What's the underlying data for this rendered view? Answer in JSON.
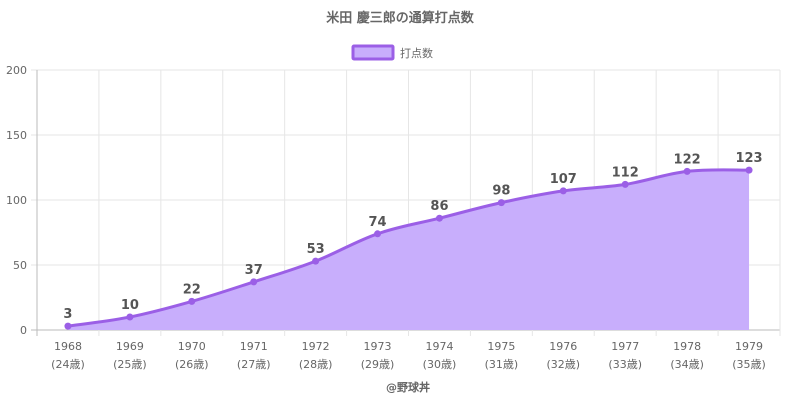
{
  "chart_data": {
    "type": "area",
    "title": "米田 慶三郎の通算打点数",
    "legend": {
      "label": "打点数",
      "position": "top"
    },
    "credit": "@野球丼",
    "categories": [
      "1968",
      "1969",
      "1970",
      "1971",
      "1972",
      "1973",
      "1974",
      "1975",
      "1976",
      "1977",
      "1978",
      "1979"
    ],
    "ages": [
      "(24歳)",
      "(25歳)",
      "(26歳)",
      "(27歳)",
      "(28歳)",
      "(29歳)",
      "(30歳)",
      "(31歳)",
      "(32歳)",
      "(33歳)",
      "(34歳)",
      "(35歳)"
    ],
    "series": [
      {
        "name": "打点数",
        "values": [
          3,
          10,
          22,
          37,
          53,
          74,
          86,
          98,
          107,
          112,
          122,
          123
        ]
      }
    ],
    "y_ticks": [
      0,
      50,
      100,
      150,
      200
    ],
    "ylim": [
      0,
      200
    ],
    "grid": true,
    "colors": {
      "line": "#9b5fe6",
      "fill": "#c8aefc",
      "grid": "#e6e6e6",
      "axis": "#bbbbbb"
    }
  }
}
